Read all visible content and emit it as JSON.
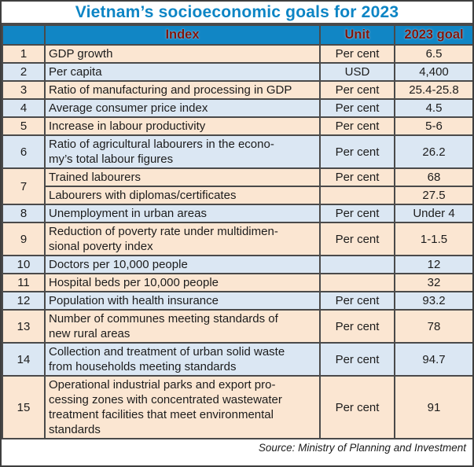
{
  "title": "Vietnam’s socioeconomic goals for 2023",
  "source": "Source: Ministry of Planning and Investment",
  "colors": {
    "title_text": "#0D85C5",
    "header_bg": "#1186C5",
    "header_text": "#7E150C",
    "row_peach": "#FBE6D2",
    "row_blue": "#DBE7F3",
    "border_outer": "#3E3E3E",
    "border_inner": "#4A4A4A",
    "body_text": "#1C1C1C"
  },
  "chart_data": {
    "type": "table",
    "title": "Vietnam’s socioeconomic goals for 2023",
    "columns": [
      "",
      "Index",
      "Unit",
      "2023 goal"
    ],
    "rows": [
      {
        "no": "1",
        "bg": "peach",
        "lines": [
          {
            "index": "GDP growth",
            "unit": "Per cent",
            "goal": "6.5"
          }
        ]
      },
      {
        "no": "2",
        "bg": "blue",
        "lines": [
          {
            "index": "Per capita",
            "unit": "USD",
            "goal": "4,400"
          }
        ]
      },
      {
        "no": "3",
        "bg": "peach",
        "lines": [
          {
            "index": "Ratio of manufacturing and processing in GDP",
            "unit": "Per cent",
            "goal": "25.4-25.8"
          }
        ]
      },
      {
        "no": "4",
        "bg": "blue",
        "lines": [
          {
            "index": "Average consumer price index",
            "unit": "Per cent",
            "goal": "4.5"
          }
        ]
      },
      {
        "no": "5",
        "bg": "peach",
        "lines": [
          {
            "index": "Increase in labour productivity",
            "unit": "Per cent",
            "goal": "5-6"
          }
        ]
      },
      {
        "no": "6",
        "bg": "blue",
        "lines": [
          {
            "index": "Ratio of agricultural labourers in the econo-\nmy’s total labour figures",
            "unit": "Per cent",
            "goal": "26.2"
          }
        ]
      },
      {
        "no": "7",
        "bg": "peach",
        "lines": [
          {
            "index": "Trained labourers",
            "unit": "Per cent",
            "goal": "68"
          },
          {
            "index": "Labourers with diplomas/certificates",
            "unit": "",
            "goal": "27.5"
          }
        ]
      },
      {
        "no": "8",
        "bg": "blue",
        "lines": [
          {
            "index": "Unemployment in urban areas",
            "unit": "Per cent",
            "goal": "Under 4"
          }
        ]
      },
      {
        "no": "9",
        "bg": "peach",
        "lines": [
          {
            "index": "Reduction of poverty rate under multidimen-\nsional poverty index",
            "unit": "Per cent",
            "goal": "1-1.5"
          }
        ]
      },
      {
        "no": "10",
        "bg": "blue",
        "lines": [
          {
            "index": "Doctors per 10,000 people",
            "unit": "",
            "goal": "12"
          }
        ]
      },
      {
        "no": "11",
        "bg": "peach",
        "lines": [
          {
            "index": "Hospital beds per 10,000 people",
            "unit": "",
            "goal": "32"
          }
        ]
      },
      {
        "no": "12",
        "bg": "blue",
        "lines": [
          {
            "index": "Population with health insurance",
            "unit": "Per cent",
            "goal": "93.2"
          }
        ]
      },
      {
        "no": "13",
        "bg": "peach",
        "lines": [
          {
            "index": "Number of communes meeting standards of\nnew rural areas",
            "unit": "Per cent",
            "goal": "78"
          }
        ]
      },
      {
        "no": "14",
        "bg": "blue",
        "lines": [
          {
            "index": "Collection and treatment of urban solid waste\nfrom households meeting standards",
            "unit": "Per cent",
            "goal": "94.7"
          }
        ]
      },
      {
        "no": "15",
        "bg": "peach",
        "lines": [
          {
            "index": "Operational industrial parks and export pro-\ncessing zones with concentrated wastewater\ntreatment facilities that meet environmental\nstandards",
            "unit": "Per cent",
            "goal": "91"
          }
        ]
      }
    ],
    "source": "Source: Ministry of Planning and Investment"
  }
}
